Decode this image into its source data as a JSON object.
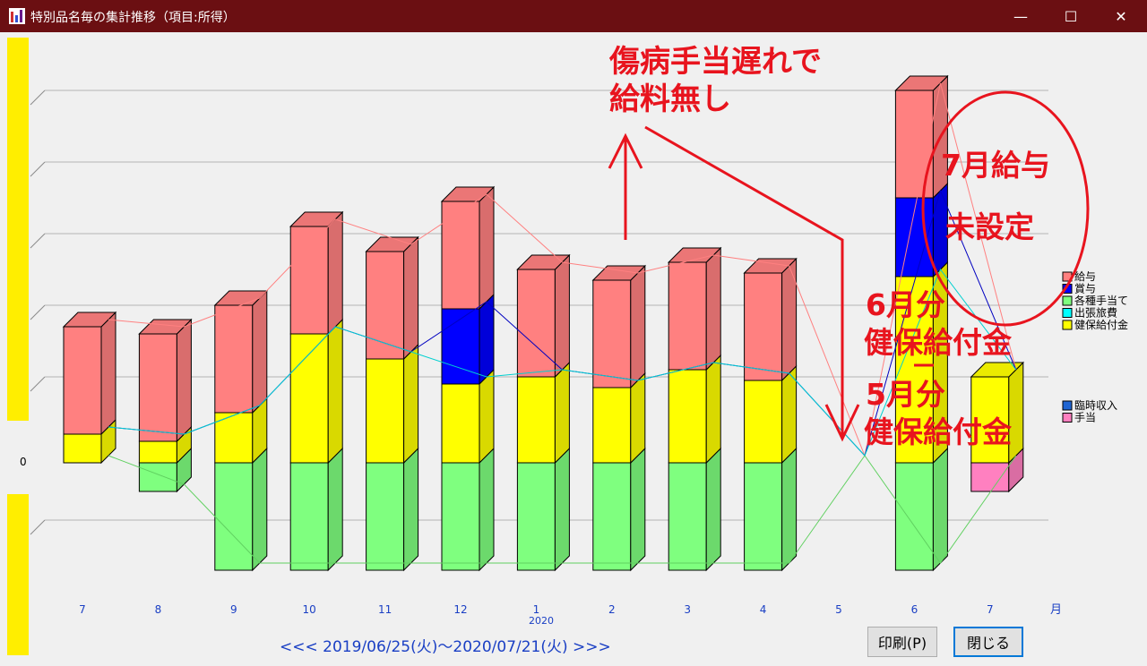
{
  "window": {
    "title": "特別品名毎の集計推移（項目:所得）",
    "minimize": "—",
    "maximize": "☐",
    "close": "✕"
  },
  "chart_data": {
    "type": "bar",
    "stacked": true,
    "three_d": true,
    "x_label": "月",
    "year_label": "2020",
    "year_label_index": 6,
    "zero_label": "0",
    "categories": [
      "7",
      "8",
      "9",
      "10",
      "11",
      "12",
      "1",
      "2",
      "3",
      "4",
      "5",
      "6",
      "7"
    ],
    "y_range": [
      -1.5,
      5.3
    ],
    "grid": true,
    "legend_placement": "right",
    "series": [
      {
        "name": "各種手当て",
        "color": "#7fff7f",
        "values": [
          0,
          -0.4,
          -1.5,
          -1.5,
          -1.5,
          -1.5,
          -1.5,
          -1.5,
          -1.5,
          -1.5,
          0,
          -1.5,
          0
        ]
      },
      {
        "name": "健保給付金",
        "color": "#ffff00",
        "values": [
          0.4,
          0.3,
          0.7,
          1.8,
          1.45,
          1.1,
          1.2,
          1.05,
          1.3,
          1.15,
          0,
          2.6,
          1.2
        ]
      },
      {
        "name": "賞与",
        "color": "#0000ff",
        "values": [
          0,
          0,
          0,
          0,
          0,
          1.05,
          0,
          0,
          0,
          0,
          0,
          1.1,
          0
        ]
      },
      {
        "name": "給与",
        "color": "#ff8080",
        "values": [
          1.5,
          1.5,
          1.5,
          1.5,
          1.5,
          1.5,
          1.5,
          1.5,
          1.5,
          1.5,
          0,
          1.5,
          0
        ]
      },
      {
        "name": "出張旅費",
        "color": "#00ffff",
        "values": [
          0,
          0,
          0,
          0,
          0,
          0,
          0,
          0,
          0,
          0,
          0,
          0,
          0
        ]
      },
      {
        "name": "臨時収入",
        "color": "#1e64d2",
        "values": [
          0,
          0,
          0,
          0,
          0,
          0,
          0,
          0,
          0,
          0,
          0,
          0,
          0
        ]
      },
      {
        "name": "手当",
        "color": "#ff80c0",
        "values": [
          0,
          0,
          0,
          0,
          0,
          0,
          0,
          0,
          0,
          0,
          0,
          0,
          -0.4
        ]
      }
    ],
    "legend_top": [
      "給与",
      "賞与",
      "各種手当て",
      "出張旅費",
      "健保給付金"
    ],
    "legend_bottom": [
      "臨時収入",
      "手当"
    ]
  },
  "annotations": {
    "line1": "傷病手当遅れで",
    "line2": "給料無し",
    "circle_line1": "7月給与",
    "circle_line2": "未設定",
    "june_line1": "6月分",
    "june_line2": "健保給付金",
    "may_line1": "5月分",
    "may_line2": "健保給付金",
    "color": "#e8141e"
  },
  "footer": {
    "range": "<<< 2019/06/25(火)～2020/07/21(火) >>>",
    "print_button": "印刷(P)",
    "close_button": "閉じる"
  }
}
